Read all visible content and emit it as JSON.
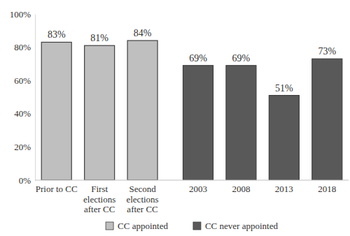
{
  "chart_data": {
    "type": "bar",
    "categories": [
      "Prior to CC",
      "First elections after CC",
      "Second elections after CC",
      "2003",
      "2008",
      "2013",
      "2018"
    ],
    "series": [
      {
        "name": "CC appointed",
        "color": "#bfbfbf",
        "values": [
          83,
          81,
          84,
          null,
          null,
          null,
          null
        ],
        "value_labels": [
          "83%",
          "81%",
          "84%",
          null,
          null,
          null,
          null
        ]
      },
      {
        "name": "CC never appointed",
        "color": "#595959",
        "values": [
          null,
          null,
          null,
          69,
          69,
          51,
          73
        ],
        "value_labels": [
          null,
          null,
          null,
          "69%",
          "69%",
          "51%",
          "73%"
        ]
      }
    ],
    "ylim": [
      0,
      100
    ],
    "yticks": [
      {
        "value": 0,
        "label": "0%"
      },
      {
        "value": 20,
        "label": "20%"
      },
      {
        "value": 40,
        "label": "40%"
      },
      {
        "value": 60,
        "label": "60%"
      },
      {
        "value": 80,
        "label": "80%"
      },
      {
        "value": 100,
        "label": "100%"
      }
    ],
    "grid": false,
    "legend": "bottom",
    "data_labels": true
  }
}
